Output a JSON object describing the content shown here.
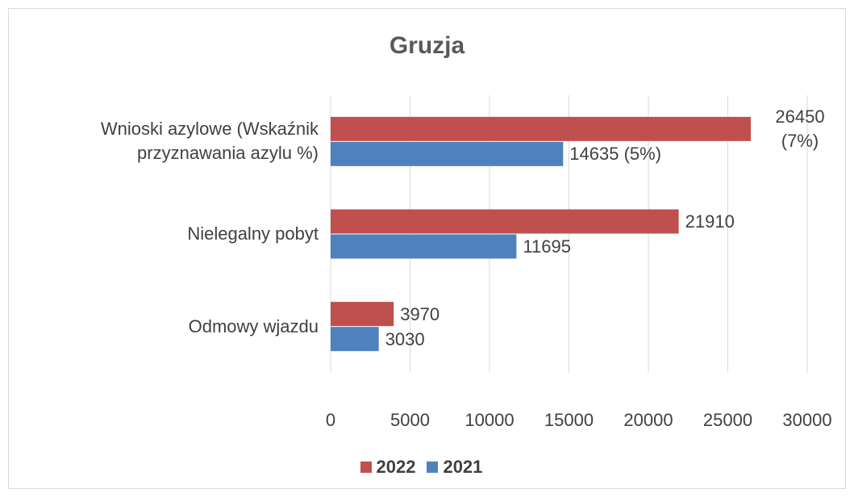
{
  "chart_data": {
    "type": "barh",
    "title": "Gruzja",
    "categories": [
      "Wnioski azylowe (Wskaźnik przyznawania azylu %)",
      "Nielegalny pobyt",
      "Odmowy wjazdu"
    ],
    "series": [
      {
        "name": "2022",
        "color": "#c0504d",
        "values": [
          26450,
          21910,
          3970
        ],
        "value_labels": [
          "26450 (7%)",
          "21910",
          "3970"
        ]
      },
      {
        "name": "2021",
        "color": "#4f81bd",
        "values": [
          14635,
          11695,
          3030
        ],
        "value_labels": [
          "14635 (5%)",
          "11695",
          "3030"
        ]
      }
    ],
    "xlim": [
      0,
      30000
    ],
    "xticks": [
      0,
      5000,
      10000,
      15000,
      20000,
      25000,
      30000
    ],
    "grid": true,
    "legend": "bottom"
  }
}
